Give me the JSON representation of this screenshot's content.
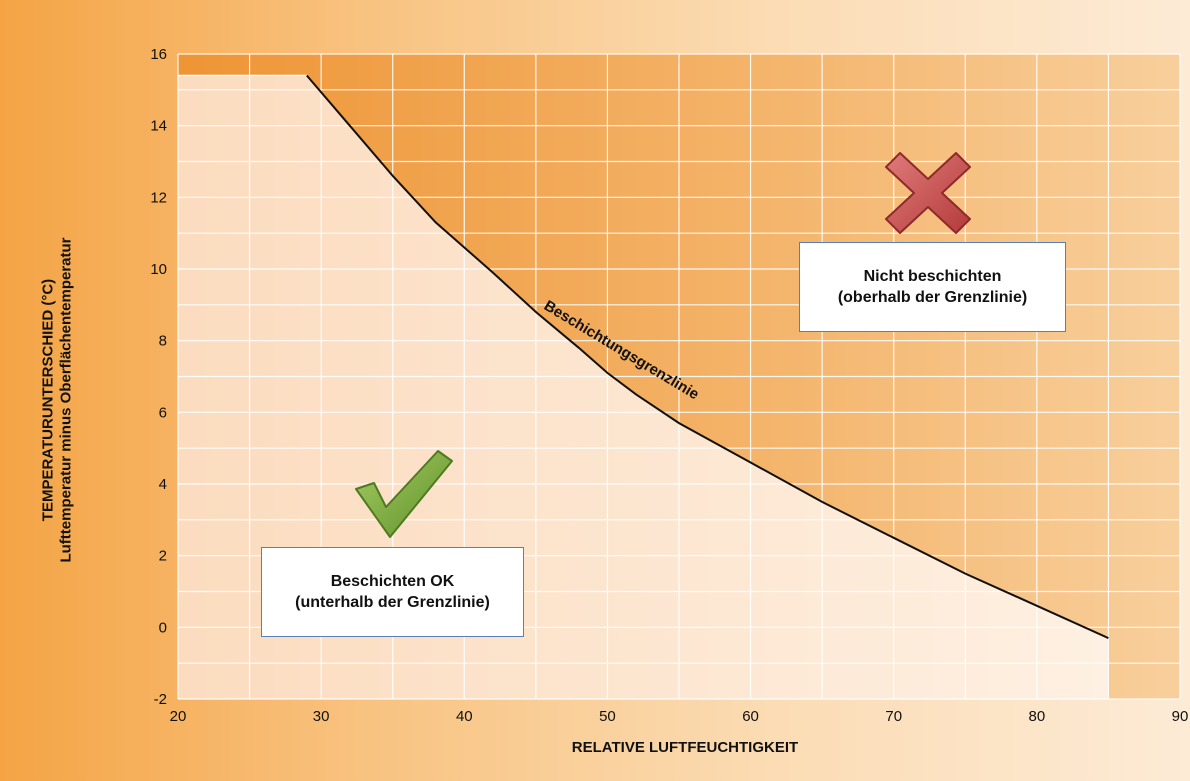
{
  "chart_data": {
    "type": "line",
    "title": "",
    "xlabel": "RELATIVE LUFTFEUCHTIGKEIT",
    "ylabel_line1": "TEMPERATURUNTERSCHIED (°C)",
    "ylabel_line2": "Lufttemperatur minus Oberflächentemperatur",
    "xlim": [
      20,
      90
    ],
    "ylim": [
      -2,
      16
    ],
    "xticks": [
      20,
      30,
      40,
      50,
      60,
      70,
      80,
      90
    ],
    "yticks": [
      -2,
      0,
      2,
      4,
      6,
      8,
      10,
      12,
      14,
      16
    ],
    "grid": true,
    "series": [
      {
        "name": "Beschichtungsgrenzlinie",
        "x": [
          29,
          32,
          35,
          38,
          40,
          42,
          45,
          48,
          50,
          52,
          55,
          60,
          65,
          70,
          75,
          80,
          85
        ],
        "y": [
          15.4,
          14.0,
          12.6,
          11.3,
          10.6,
          9.9,
          8.8,
          7.8,
          7.1,
          6.5,
          5.7,
          4.6,
          3.5,
          2.5,
          1.5,
          0.6,
          -0.3
        ],
        "color": "#111111"
      }
    ],
    "annotations": [
      {
        "text": "Beschichtungsgrenzlinie"
      }
    ]
  },
  "boxes": {
    "ok_line1": "Beschichten OK",
    "ok_line2": "(unterhalb der Grenzlinie)",
    "no_line1": "Nicht beschichten",
    "no_line2": "(oberhalb der Grenzlinie)"
  },
  "icons": {
    "ok": "check-mark-icon",
    "no": "cross-mark-icon"
  },
  "colors": {
    "above_region": "#f0a04a",
    "below_region": "#fde6cf",
    "check_green": "#7aa83a",
    "cross_red": "#c94c4c"
  }
}
